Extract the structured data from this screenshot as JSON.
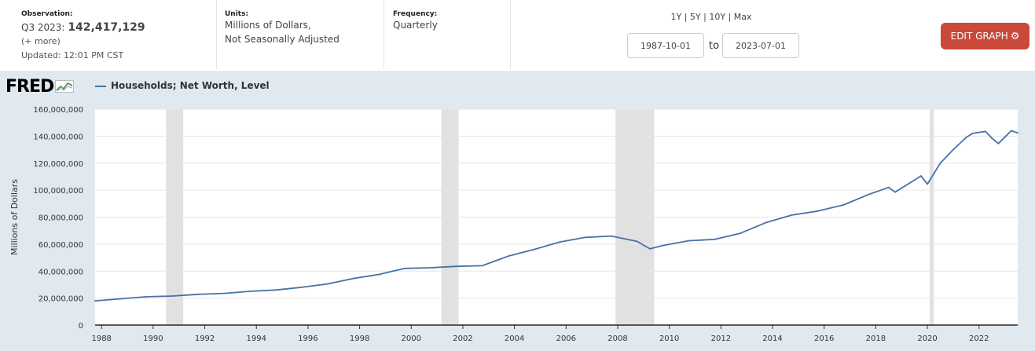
{
  "header": {
    "observation": {
      "label": "Observation:",
      "period": "Q3 2023:",
      "value": "142,417,129",
      "more": "(+ more)",
      "updated": "Updated: 12:01 PM CST"
    },
    "units": {
      "label": "Units:",
      "line1": "Millions of Dollars,",
      "line2": "Not Seasonally Adjusted"
    },
    "frequency": {
      "label": "Frequency:",
      "value": "Quarterly"
    },
    "range_links": [
      "1Y",
      "5Y",
      "10Y",
      "Max"
    ],
    "date_from": "1987-10-01",
    "date_to": "2023-07-01",
    "to_label": "to",
    "edit_button": "EDIT GRAPH",
    "edit_button_color": "#c9493a"
  },
  "logo": "FRED",
  "legend": "Households; Net Worth, Level",
  "colors": {
    "series": "#4572a7",
    "recession": "#e1e1e1",
    "background": "#e1e9f0"
  },
  "chart_data": {
    "type": "line",
    "title": "",
    "ylabel": "Millions of Dollars",
    "xlabel": "",
    "ylim": [
      0,
      160000000
    ],
    "yticks": [
      0,
      20000000,
      40000000,
      60000000,
      80000000,
      100000000,
      120000000,
      140000000,
      160000000
    ],
    "ytick_labels": [
      "0",
      "20,000,000",
      "40,000,000",
      "60,000,000",
      "80,000,000",
      "100,000,000",
      "120,000,000",
      "140,000,000",
      "160,000,000"
    ],
    "xlim": [
      "1987-10-01",
      "2023-07-01"
    ],
    "xtick_labels": [
      "1988",
      "1990",
      "1992",
      "1994",
      "1996",
      "1998",
      "2000",
      "2002",
      "2004",
      "2006",
      "2008",
      "2010",
      "2012",
      "2014",
      "2016",
      "2018",
      "2020",
      "2022"
    ],
    "grid": true,
    "recessions": [
      [
        "1990-07-01",
        "1991-03-01"
      ],
      [
        "2001-03-01",
        "2001-11-01"
      ],
      [
        "2007-12-01",
        "2009-06-01"
      ],
      [
        "2020-02-01",
        "2020-04-01"
      ]
    ],
    "series": [
      {
        "name": "Households; Net Worth, Level",
        "x": [
          "1987-10-01",
          "1988-10-01",
          "1989-10-01",
          "1990-10-01",
          "1991-10-01",
          "1992-10-01",
          "1993-10-01",
          "1994-10-01",
          "1995-10-01",
          "1996-10-01",
          "1997-10-01",
          "1998-10-01",
          "1999-10-01",
          "2000-10-01",
          "2001-10-01",
          "2002-10-01",
          "2003-10-01",
          "2004-10-01",
          "2005-10-01",
          "2006-10-01",
          "2007-10-01",
          "2008-10-01",
          "2009-04-01",
          "2009-10-01",
          "2010-10-01",
          "2011-10-01",
          "2012-10-01",
          "2013-10-01",
          "2014-10-01",
          "2015-10-01",
          "2016-10-01",
          "2017-10-01",
          "2018-07-01",
          "2018-10-01",
          "2019-10-01",
          "2020-01-01",
          "2020-07-01",
          "2021-01-01",
          "2021-07-01",
          "2021-10-01",
          "2022-04-01",
          "2022-07-01",
          "2022-10-01",
          "2023-04-01",
          "2023-07-01"
        ],
        "y": [
          18000000,
          19500000,
          21000000,
          21500000,
          22800000,
          23500000,
          25000000,
          26000000,
          28000000,
          30500000,
          34500000,
          37500000,
          42000000,
          42500000,
          43500000,
          44000000,
          51000000,
          56000000,
          61500000,
          65000000,
          66000000,
          62000000,
          56500000,
          59000000,
          62500000,
          63500000,
          68000000,
          76000000,
          81500000,
          84500000,
          89000000,
          97000000,
          102000000,
          98500000,
          110500000,
          104500000,
          120000000,
          130000000,
          139000000,
          142000000,
          143500000,
          138500000,
          134500000,
          144000000,
          142417129
        ]
      }
    ]
  }
}
